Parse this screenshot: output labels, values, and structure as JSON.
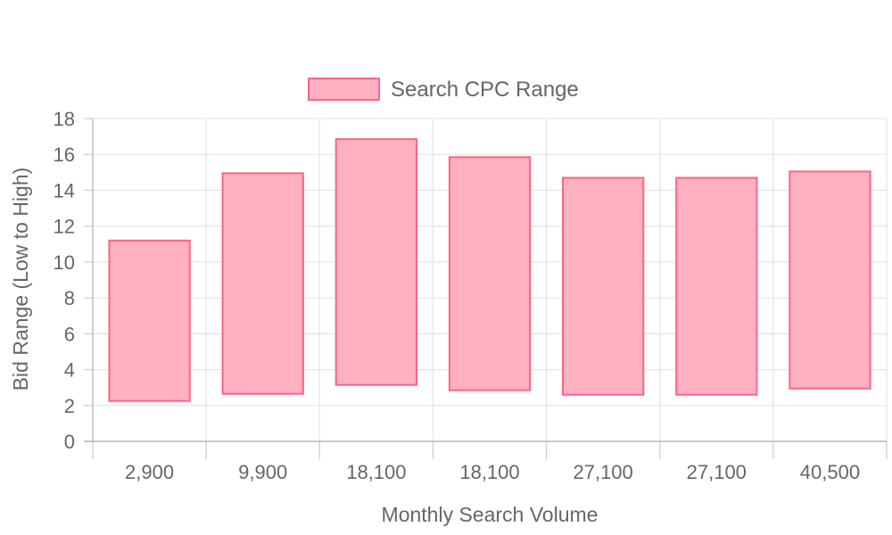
{
  "chart_data": {
    "type": "bar",
    "subtype": "floating-range",
    "categories": [
      "2,900",
      "9,900",
      "18,100",
      "18,100",
      "27,100",
      "27,100",
      "40,500"
    ],
    "series": [
      {
        "name": "Search CPC Range",
        "ranges": [
          [
            2.25,
            11.2
          ],
          [
            2.65,
            14.95
          ],
          [
            3.15,
            16.85
          ],
          [
            2.85,
            15.85
          ],
          [
            2.6,
            14.7
          ],
          [
            2.6,
            14.7
          ],
          [
            2.95,
            15.05
          ]
        ],
        "fill": "#ffb1c1",
        "stroke": "#ff6384"
      }
    ],
    "xlabel": "Monthly Search Volume",
    "ylabel": "Bid Range (Low to High)",
    "ylim": [
      0,
      18
    ],
    "yticks": [
      "0",
      "2",
      "4",
      "6",
      "8",
      "10",
      "12",
      "14",
      "16",
      "18"
    ],
    "grid": true,
    "legend_position": "top-center"
  }
}
